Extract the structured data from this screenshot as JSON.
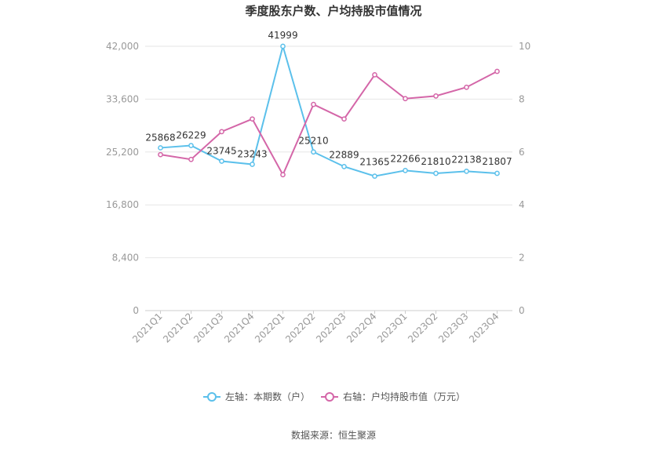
{
  "chart_data": {
    "type": "line",
    "title": "季度股东户数、户均持股市值情况",
    "categories": [
      "2021Q1",
      "2021Q2",
      "2021Q3",
      "2021Q4",
      "2022Q1",
      "2022Q2",
      "2022Q3",
      "2022Q4",
      "2023Q1",
      "2023Q2",
      "2023Q3",
      "2023Q4"
    ],
    "left_axis": {
      "min": 0,
      "max": 42000,
      "ticks": [
        "0",
        "8,400",
        "16,800",
        "25,200",
        "33,600",
        "42,000"
      ]
    },
    "right_axis": {
      "min": 0,
      "max": 10,
      "ticks": [
        "0",
        "2",
        "4",
        "6",
        "8",
        "10"
      ]
    },
    "grid": true,
    "legend_position": "bottom",
    "series": [
      {
        "name": "左轴：本期数（户）",
        "axis": "left",
        "color": "#5bc0eb",
        "values": [
          25868,
          26229,
          23745,
          23243,
          41999,
          25210,
          22889,
          21365,
          22266,
          21810,
          22138,
          21807
        ],
        "labels": [
          "25868",
          "26229",
          "23745",
          "23243",
          "41999",
          "25210",
          "22889",
          "21365",
          "22266",
          "21810",
          "22138",
          "21807"
        ]
      },
      {
        "name": "右轴：户均持股市值（万元）",
        "axis": "right",
        "color": "#d466a8",
        "values": [
          5.9,
          5.72,
          6.77,
          7.25,
          5.14,
          7.8,
          7.25,
          8.92,
          8.02,
          8.12,
          8.45,
          9.05
        ]
      }
    ]
  },
  "footer": {
    "source": "数据来源：恒生聚源"
  }
}
